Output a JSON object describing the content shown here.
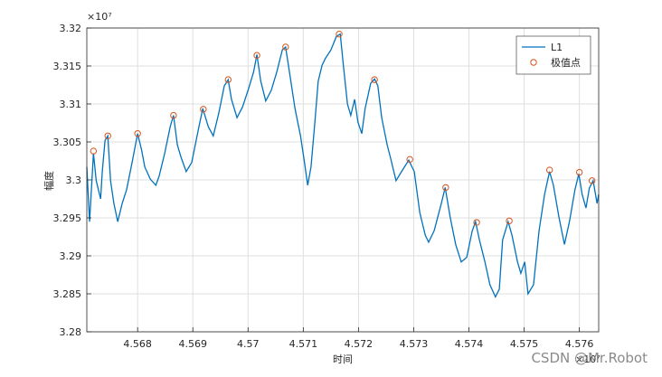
{
  "chart_data": {
    "type": "line",
    "x_label": "时间",
    "y_label": "幅度",
    "x_exponent": "×10⁷",
    "y_exponent": "×10⁷",
    "watermark": "CSDN @Mr.Robot",
    "xlim": [
      4.56708,
      4.57635
    ],
    "ylim": [
      3.28,
      3.32
    ],
    "xticks": [
      4.568,
      4.569,
      4.57,
      4.571,
      4.572,
      4.573,
      4.574,
      4.575,
      4.576
    ],
    "yticks": [
      3.28,
      3.285,
      3.29,
      3.295,
      3.3,
      3.305,
      3.31,
      3.315,
      3.32
    ],
    "grid": true,
    "legend_loc": "upper right",
    "series": [
      {
        "name": "L1",
        "color": "#0072bd",
        "style": "line",
        "x": [
          4.56708,
          4.56713,
          4.5672,
          4.56725,
          4.56733,
          4.56736,
          4.56741,
          4.56746,
          4.56751,
          4.56757,
          4.56764,
          4.56772,
          4.5678,
          4.5679,
          4.568,
          4.56807,
          4.56813,
          4.56823,
          4.56833,
          4.56839,
          4.56849,
          4.56859,
          4.56865,
          4.56872,
          4.56879,
          4.56888,
          4.56898,
          4.56911,
          4.56918,
          4.56928,
          4.56937,
          4.56947,
          4.56957,
          4.56964,
          4.5697,
          4.5698,
          4.5699,
          4.57,
          4.5701,
          4.57016,
          4.57023,
          4.57032,
          4.57042,
          4.57052,
          4.57062,
          4.57068,
          4.57075,
          4.57085,
          4.57095,
          4.57101,
          4.57108,
          4.57114,
          4.57121,
          4.57127,
          4.57134,
          4.5714,
          4.5715,
          4.5716,
          4.57167,
          4.57173,
          4.5718,
          4.57186,
          4.57193,
          4.57199,
          4.57206,
          4.57212,
          4.57222,
          4.57229,
          4.57235,
          4.57242,
          4.57252,
          4.57258,
          4.57268,
          4.57278,
          4.57291,
          4.57301,
          4.57311,
          4.57321,
          4.57327,
          4.57337,
          4.5735,
          4.57357,
          4.57366,
          4.57376,
          4.57386,
          4.57396,
          4.57406,
          4.57412,
          4.57419,
          4.57429,
          4.57438,
          4.57448,
          4.57455,
          4.57461,
          4.57471,
          4.57478,
          4.57488,
          4.57494,
          4.57501,
          4.57507,
          4.57517,
          4.57527,
          4.57537,
          4.57546,
          4.57553,
          4.57563,
          4.57573,
          4.57582,
          4.57592,
          4.57599,
          4.57605,
          4.57612,
          4.57618,
          4.57625,
          4.57632,
          4.57635
        ],
        "values": [
          3.3017,
          3.2945,
          3.3035,
          3.2999,
          3.2975,
          3.3011,
          3.3052,
          3.3058,
          3.2999,
          3.2969,
          3.2945,
          3.2969,
          3.2987,
          3.3023,
          3.3061,
          3.304,
          3.3017,
          3.3001,
          3.2993,
          3.3005,
          3.3035,
          3.307,
          3.3085,
          3.3046,
          3.3029,
          3.3011,
          3.3023,
          3.307,
          3.3094,
          3.307,
          3.3058,
          3.3088,
          3.3124,
          3.3132,
          3.3106,
          3.3082,
          3.3096,
          3.3118,
          3.3142,
          3.3165,
          3.313,
          3.3104,
          3.3118,
          3.3142,
          3.3171,
          3.3175,
          3.3142,
          3.3094,
          3.3058,
          3.3029,
          3.2993,
          3.3017,
          3.3076,
          3.313,
          3.3151,
          3.316,
          3.3171,
          3.3189,
          3.3192,
          3.3148,
          3.31,
          3.3085,
          3.3106,
          3.3076,
          3.3061,
          3.3094,
          3.3127,
          3.3133,
          3.3124,
          3.3082,
          3.3046,
          3.3029,
          3.2999,
          3.3011,
          3.3026,
          3.3011,
          3.2957,
          3.2927,
          3.2918,
          3.2933,
          3.2969,
          3.299,
          3.2951,
          3.2915,
          3.2892,
          3.2898,
          3.2933,
          3.2945,
          3.2921,
          3.2892,
          3.2862,
          3.2846,
          3.2856,
          3.2921,
          3.2945,
          3.2927,
          3.2892,
          3.2877,
          3.2892,
          3.285,
          3.2862,
          3.2933,
          3.2981,
          3.3011,
          3.2993,
          3.2951,
          3.2915,
          3.2945,
          3.2987,
          3.3008,
          3.2981,
          3.2963,
          3.2989,
          3.2999,
          3.2969,
          3.2981
        ]
      },
      {
        "name": "极值点",
        "color": "#d95319",
        "style": "markers",
        "x": [
          4.5672,
          4.56746,
          4.568,
          4.56865,
          4.56919,
          4.56964,
          4.57016,
          4.57068,
          4.57165,
          4.57229,
          4.57293,
          4.57358,
          4.57414,
          4.57473,
          4.57546,
          4.576,
          4.57623
        ],
        "values": [
          3.3038,
          3.3058,
          3.3061,
          3.3085,
          3.3093,
          3.3132,
          3.3164,
          3.3175,
          3.3192,
          3.3132,
          3.3027,
          3.299,
          3.2944,
          3.2946,
          3.3013,
          3.301,
          3.2999
        ]
      }
    ]
  }
}
